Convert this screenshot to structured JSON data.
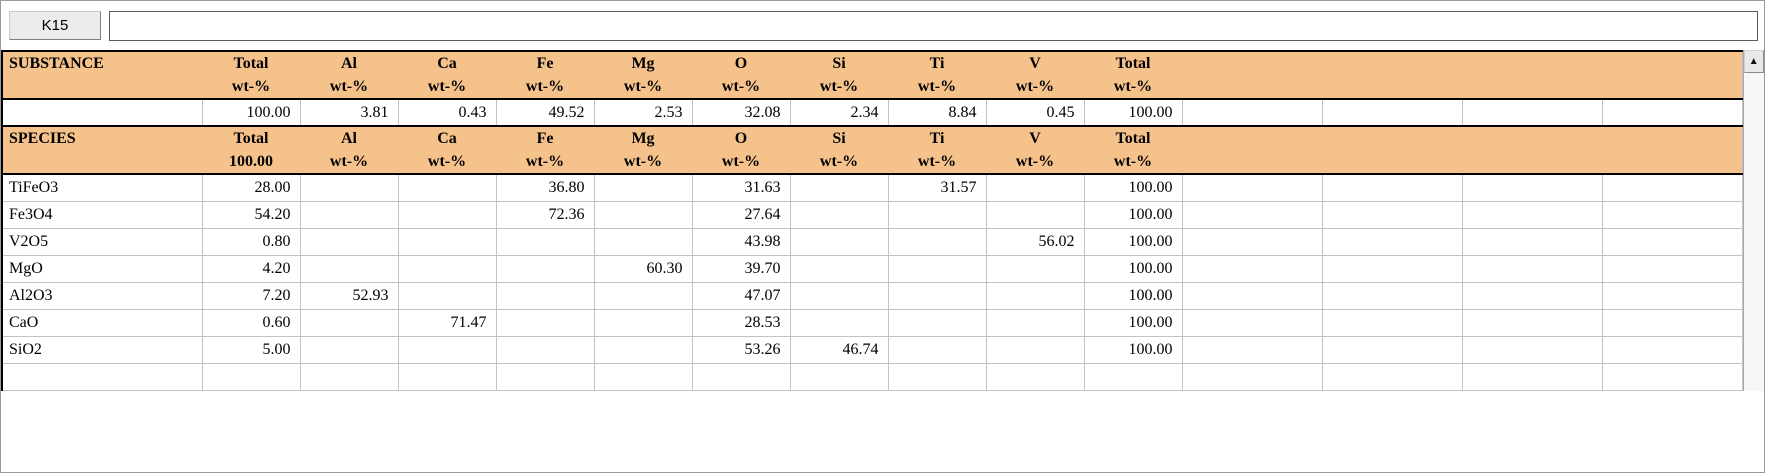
{
  "toolbar": {
    "cell_ref": "K15",
    "formula_value": ""
  },
  "icons": {
    "scroll_up": "▲"
  },
  "substance": {
    "label": "SUBSTANCE",
    "columns": [
      "Total",
      "Al",
      "Ca",
      "Fe",
      "Mg",
      "O",
      "Si",
      "Ti",
      "V",
      "Total"
    ],
    "units": [
      "wt-%",
      "wt-%",
      "wt-%",
      "wt-%",
      "wt-%",
      "wt-%",
      "wt-%",
      "wt-%",
      "wt-%",
      "wt-%"
    ],
    "values": [
      "100.00",
      "3.81",
      "0.43",
      "49.52",
      "2.53",
      "32.08",
      "2.34",
      "8.84",
      "0.45",
      "100.00"
    ]
  },
  "species": {
    "label": "SPECIES",
    "columns": [
      "Total",
      "Al",
      "Ca",
      "Fe",
      "Mg",
      "O",
      "Si",
      "Ti",
      "V",
      "Total"
    ],
    "units": [
      "100.00",
      "wt-%",
      "wt-%",
      "wt-%",
      "wt-%",
      "wt-%",
      "wt-%",
      "wt-%",
      "wt-%",
      "wt-%"
    ],
    "rows": [
      {
        "name": "TiFeO3",
        "values": [
          "28.00",
          "",
          "",
          "36.80",
          "",
          "31.63",
          "",
          "31.57",
          "",
          "100.00"
        ]
      },
      {
        "name": "Fe3O4",
        "values": [
          "54.20",
          "",
          "",
          "72.36",
          "",
          "27.64",
          "",
          "",
          "",
          "100.00"
        ]
      },
      {
        "name": "V2O5",
        "values": [
          "0.80",
          "",
          "",
          "",
          "",
          "43.98",
          "",
          "",
          "56.02",
          "100.00"
        ]
      },
      {
        "name": "MgO",
        "values": [
          "4.20",
          "",
          "",
          "",
          "60.30",
          "39.70",
          "",
          "",
          "",
          "100.00"
        ]
      },
      {
        "name": "Al2O3",
        "values": [
          "7.20",
          "52.93",
          "",
          "",
          "",
          "47.07",
          "",
          "",
          "",
          "100.00"
        ]
      },
      {
        "name": "CaO",
        "values": [
          "0.60",
          "",
          "71.47",
          "",
          "",
          "28.53",
          "",
          "",
          "",
          "100.00"
        ]
      },
      {
        "name": "SiO2",
        "values": [
          "5.00",
          "",
          "",
          "",
          "",
          "53.26",
          "46.74",
          "",
          "",
          "100.00"
        ]
      }
    ]
  }
}
